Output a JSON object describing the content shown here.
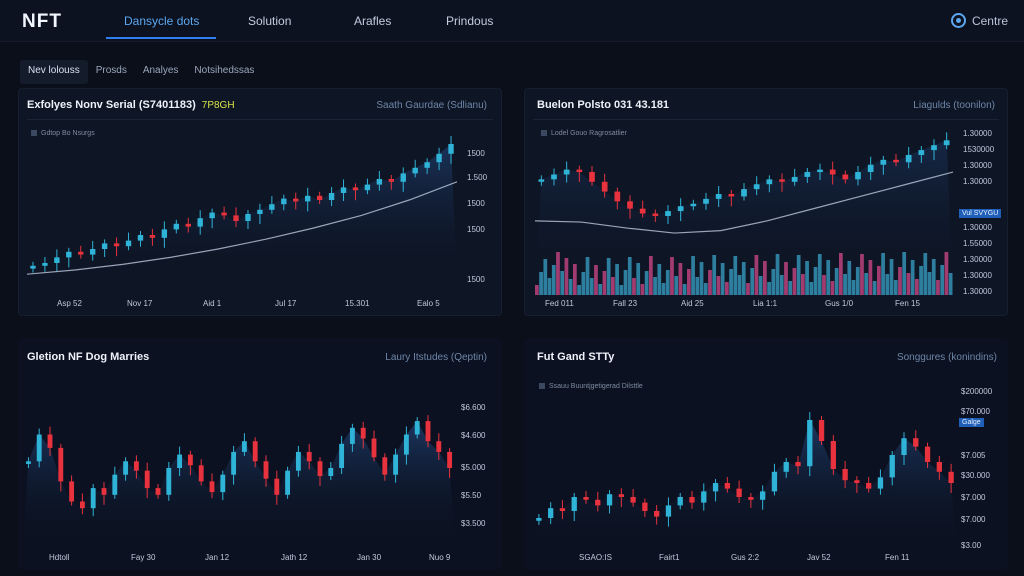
{
  "app": {
    "logo": "NFT"
  },
  "nav": {
    "tabs": [
      "Dansycle dots",
      "Solution",
      "Arafles",
      "Prindous"
    ],
    "right_label": "Centre"
  },
  "subnav": {
    "tabs": [
      "Nev lolouss",
      "Prosds",
      "Analyes",
      "Notsihedssas"
    ]
  },
  "panels": [
    {
      "title": "Exfolyes Nonv Serial (S7401183)",
      "badge": "7P8GH",
      "right": "Saath Gaurdae (Sdlianu)",
      "meta": "Gdtop Bo Nsurgs",
      "y_labels": [
        "1500",
        "1.500",
        "1500",
        "1500",
        "1500"
      ],
      "x_labels": [
        "Asp 52",
        "Nov 17",
        "Aid 1",
        "Jul 17",
        "15.301",
        "Ealo 5"
      ]
    },
    {
      "title": "Buelon Polsto 031 43.181",
      "badge": "",
      "right": "Liagulds (toonilon)",
      "meta": "Lodel Gouo Ragrosatlier",
      "y_labels": [
        "1.30000",
        "1530000",
        "1.30000",
        "1.30000",
        "1.30000",
        "1.55000",
        "1.30000",
        "1.30000",
        "1.30000"
      ],
      "highlight": "Vul SVYGU",
      "x_labels": [
        "Fed 011",
        "Fall 23",
        "Aid 25",
        "Lia 1:1",
        "Gus 1/0",
        "Fen 15"
      ]
    },
    {
      "title": "Gletion NF Dog Marries",
      "badge": "",
      "right": "Laury Itstudes (Qeptin)",
      "meta": "",
      "y_labels": [
        "$6.600",
        "$4.600",
        "$5.000",
        "$5.50",
        "$3.500"
      ],
      "x_labels": [
        "Hdtoll",
        "Fay 30",
        "Jan 12",
        "Jath 12",
        "Jan 30",
        "Nuo 9"
      ]
    },
    {
      "title": "Fut Gand STTy",
      "badge": "",
      "right": "Songgures (konindins)",
      "meta": "Ssauu Buuntjgetigerad Dilsttle",
      "y_labels": [
        "$200000",
        "$70.000",
        "$7.005",
        "$30.000",
        "$7.000",
        "$7.000",
        "$3.00"
      ],
      "highlight": "Galge",
      "x_labels": [
        "SGAO:IS",
        "Fairt1",
        "Gus 2:2",
        "Jav 52",
        "Fen 11"
      ]
    }
  ],
  "colors": {
    "up": "#2fb4d8",
    "down": "#e8323e",
    "bg": "#0a0f1a",
    "panel": "#0e1524",
    "accent": "#2f7ff0"
  },
  "chart_data": [
    {
      "type": "line",
      "trend": "rising",
      "candles": [
        0.08,
        0.1,
        0.14,
        0.18,
        0.16,
        0.2,
        0.24,
        0.22,
        0.26,
        0.3,
        0.28,
        0.34,
        0.38,
        0.36,
        0.42,
        0.46,
        0.44,
        0.4,
        0.45,
        0.48,
        0.52,
        0.56,
        0.54,
        0.58,
        0.55,
        0.6,
        0.64,
        0.62,
        0.66,
        0.7,
        0.68,
        0.74,
        0.78,
        0.82,
        0.88,
        0.95
      ]
    },
    {
      "type": "line",
      "trend": "dip then rise",
      "candles": [
        0.62,
        0.66,
        0.7,
        0.68,
        0.6,
        0.52,
        0.44,
        0.38,
        0.34,
        0.32,
        0.36,
        0.4,
        0.42,
        0.46,
        0.5,
        0.48,
        0.54,
        0.58,
        0.62,
        0.6,
        0.64,
        0.68,
        0.7,
        0.66,
        0.62,
        0.68,
        0.74,
        0.78,
        0.76,
        0.82,
        0.86,
        0.9,
        0.94
      ]
    },
    {
      "type": "line",
      "trend": "volatile",
      "candles": [
        0.55,
        0.75,
        0.65,
        0.4,
        0.25,
        0.2,
        0.35,
        0.3,
        0.45,
        0.55,
        0.48,
        0.35,
        0.3,
        0.5,
        0.6,
        0.52,
        0.4,
        0.32,
        0.45,
        0.62,
        0.7,
        0.55,
        0.42,
        0.3,
        0.48,
        0.62,
        0.55,
        0.44,
        0.5,
        0.68,
        0.8,
        0.72,
        0.58,
        0.45,
        0.6,
        0.75,
        0.85,
        0.7,
        0.62,
        0.5
      ]
    },
    {
      "type": "line",
      "trend": "volatile rise",
      "candles": [
        0.15,
        0.22,
        0.2,
        0.3,
        0.28,
        0.24,
        0.32,
        0.3,
        0.26,
        0.2,
        0.16,
        0.24,
        0.3,
        0.26,
        0.34,
        0.4,
        0.36,
        0.3,
        0.28,
        0.34,
        0.48,
        0.55,
        0.52,
        0.85,
        0.7,
        0.5,
        0.42,
        0.4,
        0.36,
        0.44,
        0.6,
        0.72,
        0.66,
        0.55,
        0.48,
        0.4
      ]
    }
  ]
}
